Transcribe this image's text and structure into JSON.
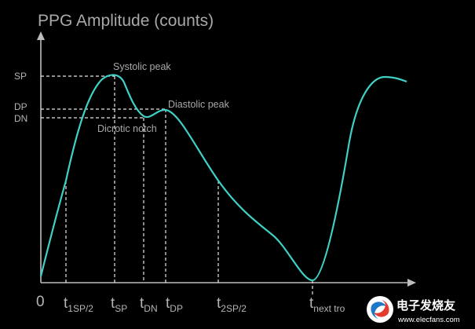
{
  "diagram": {
    "title": "PPG Amplitude (counts)",
    "y_levels": [
      {
        "label": "SP"
      },
      {
        "label": "DP"
      },
      {
        "label": "DN"
      }
    ],
    "annotations": {
      "systolic_peak": "Systolic peak",
      "diastolic_peak": "Diastolic peak",
      "dicrotic_notch": "Dicrotic notch"
    },
    "origin_label": "0",
    "time_markers": [
      {
        "main": "t",
        "sub": "1SP/2"
      },
      {
        "main": "t",
        "sub": "SP"
      },
      {
        "main": "t",
        "sub": "DN"
      },
      {
        "main": "t",
        "sub": "DP"
      },
      {
        "main": "t",
        "sub": "2SP/2"
      },
      {
        "main": "t",
        "sub": "next tro"
      }
    ],
    "colors": {
      "background": "#000000",
      "curve": "#3fd0c6",
      "axis": "#bdbdbd",
      "guides": "#e6e6e6",
      "text": "#a9a9a9"
    }
  },
  "watermark": {
    "brand": "电子发烧友",
    "url": "www.elecfans.com",
    "icon": "elecfans-logo-icon"
  }
}
